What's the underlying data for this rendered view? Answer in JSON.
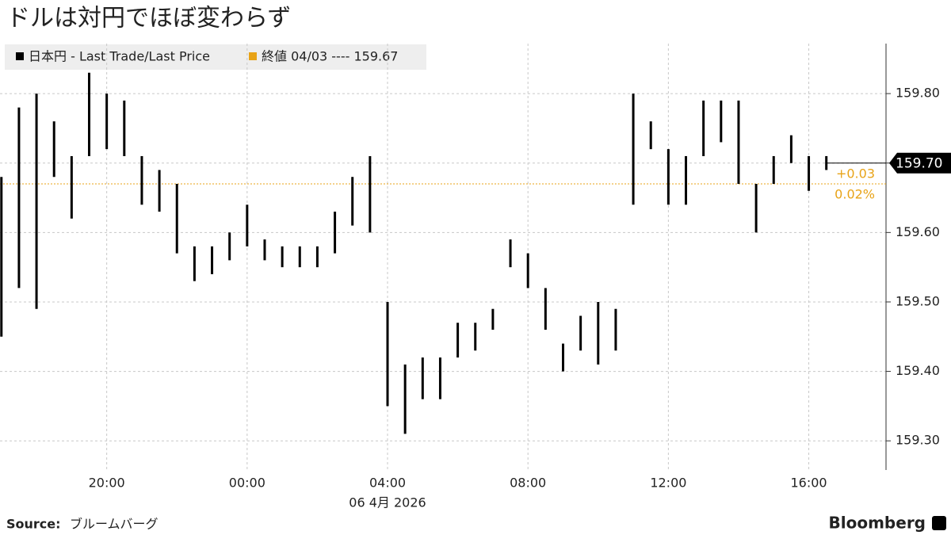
{
  "chart_data": {
    "type": "range",
    "title": "ドルは対円でほぼ変わらず",
    "legend": [
      "日本円 - Last Trade/Last Price",
      "終値 04/03 ---- 159.67"
    ],
    "x": [
      -7,
      -6.5,
      -6,
      -5.5,
      -5,
      -4.5,
      -4,
      -3.5,
      -3,
      -2.5,
      -2,
      -1.5,
      -1,
      -0.5,
      0,
      0.5,
      1,
      1.5,
      2,
      2.5,
      3,
      3.5,
      4,
      4.5,
      5,
      5.5,
      6,
      6.5,
      7,
      7.5,
      8,
      8.5,
      9,
      9.5,
      10,
      10.5,
      11,
      11.5,
      12,
      12.5,
      13,
      13.5,
      14,
      14.5,
      15,
      15.5,
      16,
      16.5
    ],
    "series": [
      {
        "name": "high",
        "color": "#000000",
        "values": [
          159.68,
          159.78,
          159.8,
          159.76,
          159.71,
          159.83,
          159.8,
          159.79,
          159.71,
          159.69,
          159.67,
          159.58,
          159.58,
          159.6,
          159.64,
          159.59,
          159.58,
          159.58,
          159.58,
          159.63,
          159.68,
          159.71,
          159.5,
          159.41,
          159.42,
          159.42,
          159.47,
          159.47,
          159.49,
          159.59,
          159.57,
          159.52,
          159.44,
          159.48,
          159.5,
          159.49,
          159.8,
          159.76,
          159.72,
          159.71,
          159.79,
          159.79,
          159.79,
          159.67,
          159.71,
          159.74,
          159.71,
          159.71
        ]
      },
      {
        "name": "low",
        "color": "#000000",
        "values": [
          159.45,
          159.52,
          159.49,
          159.68,
          159.62,
          159.71,
          159.72,
          159.71,
          159.64,
          159.63,
          159.57,
          159.53,
          159.54,
          159.56,
          159.58,
          159.56,
          159.55,
          159.55,
          159.55,
          159.57,
          159.61,
          159.6,
          159.35,
          159.31,
          159.36,
          159.36,
          159.42,
          159.43,
          159.46,
          159.55,
          159.52,
          159.46,
          159.4,
          159.43,
          159.41,
          159.43,
          159.64,
          159.72,
          159.64,
          159.64,
          159.71,
          159.73,
          159.67,
          159.6,
          159.67,
          159.7,
          159.66,
          159.69
        ]
      }
    ],
    "last": 159.7,
    "last_label": "159.70",
    "reference": 159.67,
    "reference_color": "#e8a317",
    "change_labels": [
      "+0.03",
      "0.02%"
    ],
    "xlim": [
      -7.04,
      18.2
    ],
    "xticks": [
      {
        "value": -4,
        "label": "20:00"
      },
      {
        "value": 0,
        "label": "00:00"
      },
      {
        "value": 4,
        "label": "04:00"
      },
      {
        "value": 8,
        "label": "08:00"
      },
      {
        "value": 12,
        "label": "12:00"
      },
      {
        "value": 16,
        "label": "16:00"
      }
    ],
    "date_label": "06 4月 2026",
    "ylim": [
      159.258,
      159.872
    ],
    "yticks": [
      {
        "value": 159.3,
        "label": "159.30"
      },
      {
        "value": 159.4,
        "label": "159.40"
      },
      {
        "value": 159.5,
        "label": "159.50"
      },
      {
        "value": 159.6,
        "label": "159.60"
      },
      {
        "value": 159.7,
        "label": "159.70"
      },
      {
        "value": 159.8,
        "label": "159.80"
      }
    ],
    "grid": true,
    "source": "Source:",
    "source_name": "ブルームバーグ",
    "brand": "Bloomberg"
  }
}
